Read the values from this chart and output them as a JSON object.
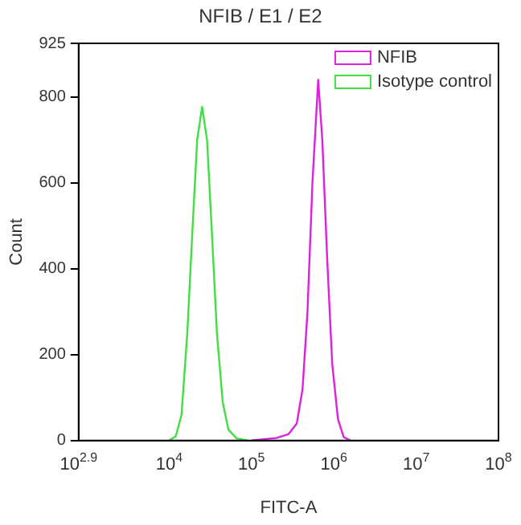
{
  "chart_data": {
    "type": "line",
    "title": "NFIB / E1 / E2",
    "xlabel": "FITC-A",
    "ylabel": "Count",
    "log": "x",
    "xlim": [
      794.3,
      100000000
    ],
    "xticks": [
      {
        "value": 794.3,
        "label": "10$^{2.9}$"
      },
      {
        "value": 10000,
        "label": "10$^{4}$"
      },
      {
        "value": 100000,
        "label": "10$^{5}$"
      },
      {
        "value": 1000000,
        "label": "10$^{6}$"
      },
      {
        "value": 10000000,
        "label": "10$^{7}$"
      },
      {
        "value": 100000000,
        "label": "10$^{8}$"
      }
    ],
    "ylim": [
      0,
      925
    ],
    "yticks": [
      0,
      200,
      400,
      600,
      800,
      925
    ],
    "grid": false,
    "legend": "top right",
    "marker": "none",
    "line_style": "solid",
    "series": [
      {
        "name": "NFIB",
        "color": "#e020e0",
        "x": [
          100000,
          125893,
          199526,
          281838,
          354813,
          416869,
          478630,
          549541,
          645654,
          724436,
          831764,
          954993,
          1122018,
          1318257,
          1584893
        ],
        "values": [
          0,
          2,
          6,
          15,
          40,
          120,
          300,
          600,
          840,
          700,
          420,
          180,
          50,
          8,
          0
        ]
      },
      {
        "name": "Isotype control",
        "color": "#40e040",
        "x": [
          10000,
          12023,
          14125,
          16596,
          19055,
          21878,
          25119,
          28840,
          33113,
          38019,
          44668,
          52481,
          66069,
          89125
        ],
        "values": [
          0,
          10,
          60,
          250,
          480,
          700,
          777,
          700,
          480,
          250,
          90,
          25,
          5,
          0
        ]
      }
    ]
  }
}
